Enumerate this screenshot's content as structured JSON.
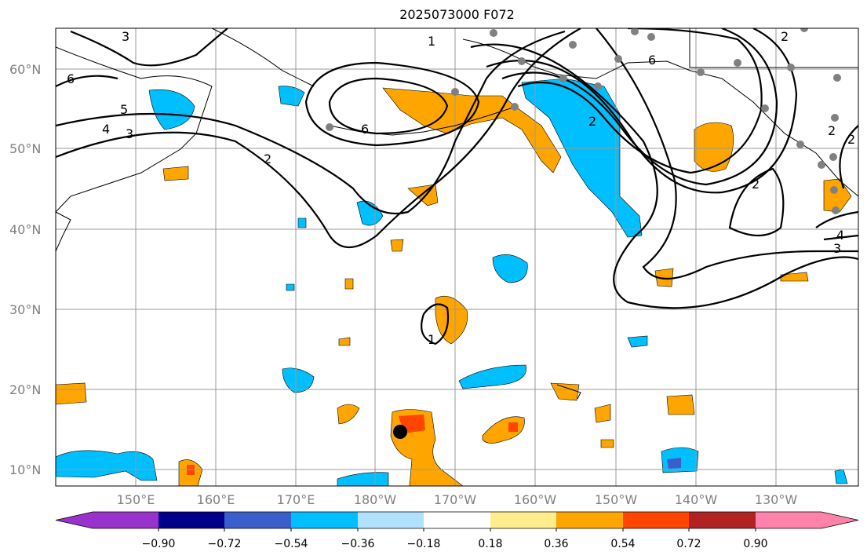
{
  "title": "2025073000 F072",
  "map": {
    "lat_labels": [
      "60°N",
      "50°N",
      "40°N",
      "30°N",
      "20°N",
      "10°N"
    ],
    "lon_labels": [
      "150°E",
      "160°E",
      "170°E",
      "180°W",
      "170°W",
      "160°W",
      "150°W",
      "140°W",
      "130°W"
    ],
    "contour_labels": [
      "3",
      "6",
      "5",
      "4",
      "3",
      "2",
      "1",
      "6",
      "2",
      "6",
      "2",
      "2",
      "2",
      "4",
      "3",
      "1",
      "2"
    ],
    "colors": {
      "negative": "#00bfff",
      "positive": "#ffa500",
      "strong_positive": "#ff4500",
      "purple": "#4169e1",
      "station": "#808080"
    }
  },
  "colorbar": {
    "colors": [
      "#9932cc",
      "#00008b",
      "#3a5fcd",
      "#00bfff",
      "#b0e2ff",
      "#ffffff",
      "#ffec8b",
      "#ffa500",
      "#ff4500",
      "#b22222",
      "#ff82ab"
    ],
    "labels": [
      "−0.90",
      "−0.72",
      "−0.54",
      "−0.36",
      "−0.18",
      "0.18",
      "0.36",
      "0.54",
      "0.72",
      "0.90"
    ]
  }
}
